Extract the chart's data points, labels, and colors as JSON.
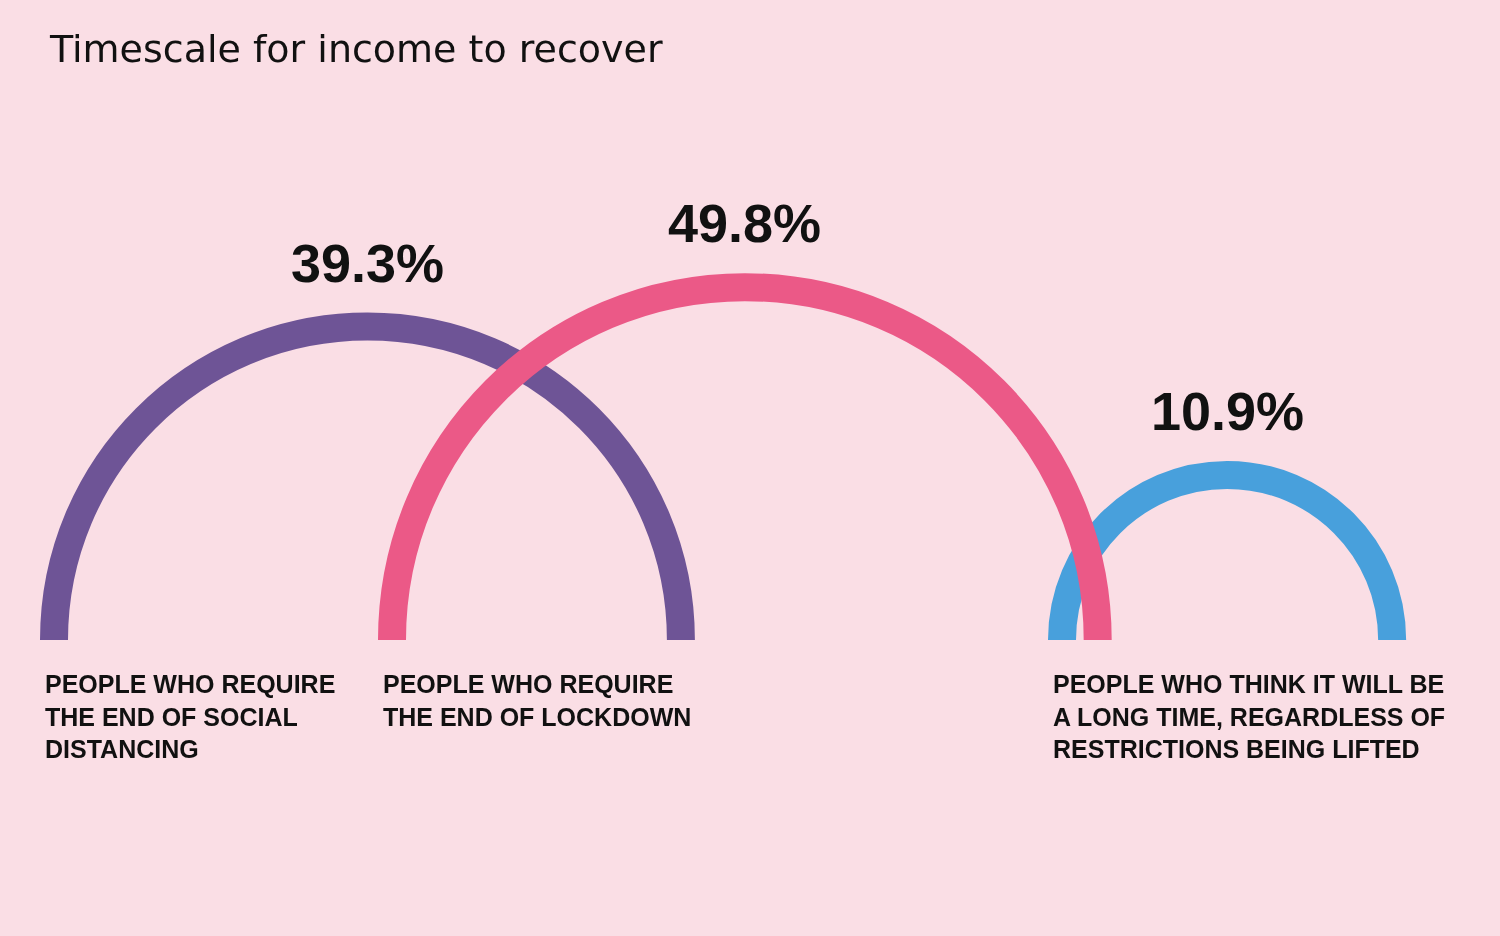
{
  "chart_data": {
    "type": "other",
    "title": "Timescale for income to recover",
    "categories": [
      "PEOPLE WHO REQUIRE THE END OF SOCIAL DISTANCING",
      "PEOPLE WHO REQUIRE THE END OF LOCKDOWN",
      "PEOPLE WHO THINK IT WILL BE A LONG TIME, REGARDLESS OF RESTRICTIONS BEING LIFTED"
    ],
    "values": [
      39.3,
      49.8,
      10.9
    ],
    "value_labels": [
      "39.3%",
      "49.8%",
      "10.9%"
    ],
    "colors": [
      "#6e5496",
      "#eb5987",
      "#48a0dc"
    ]
  }
}
